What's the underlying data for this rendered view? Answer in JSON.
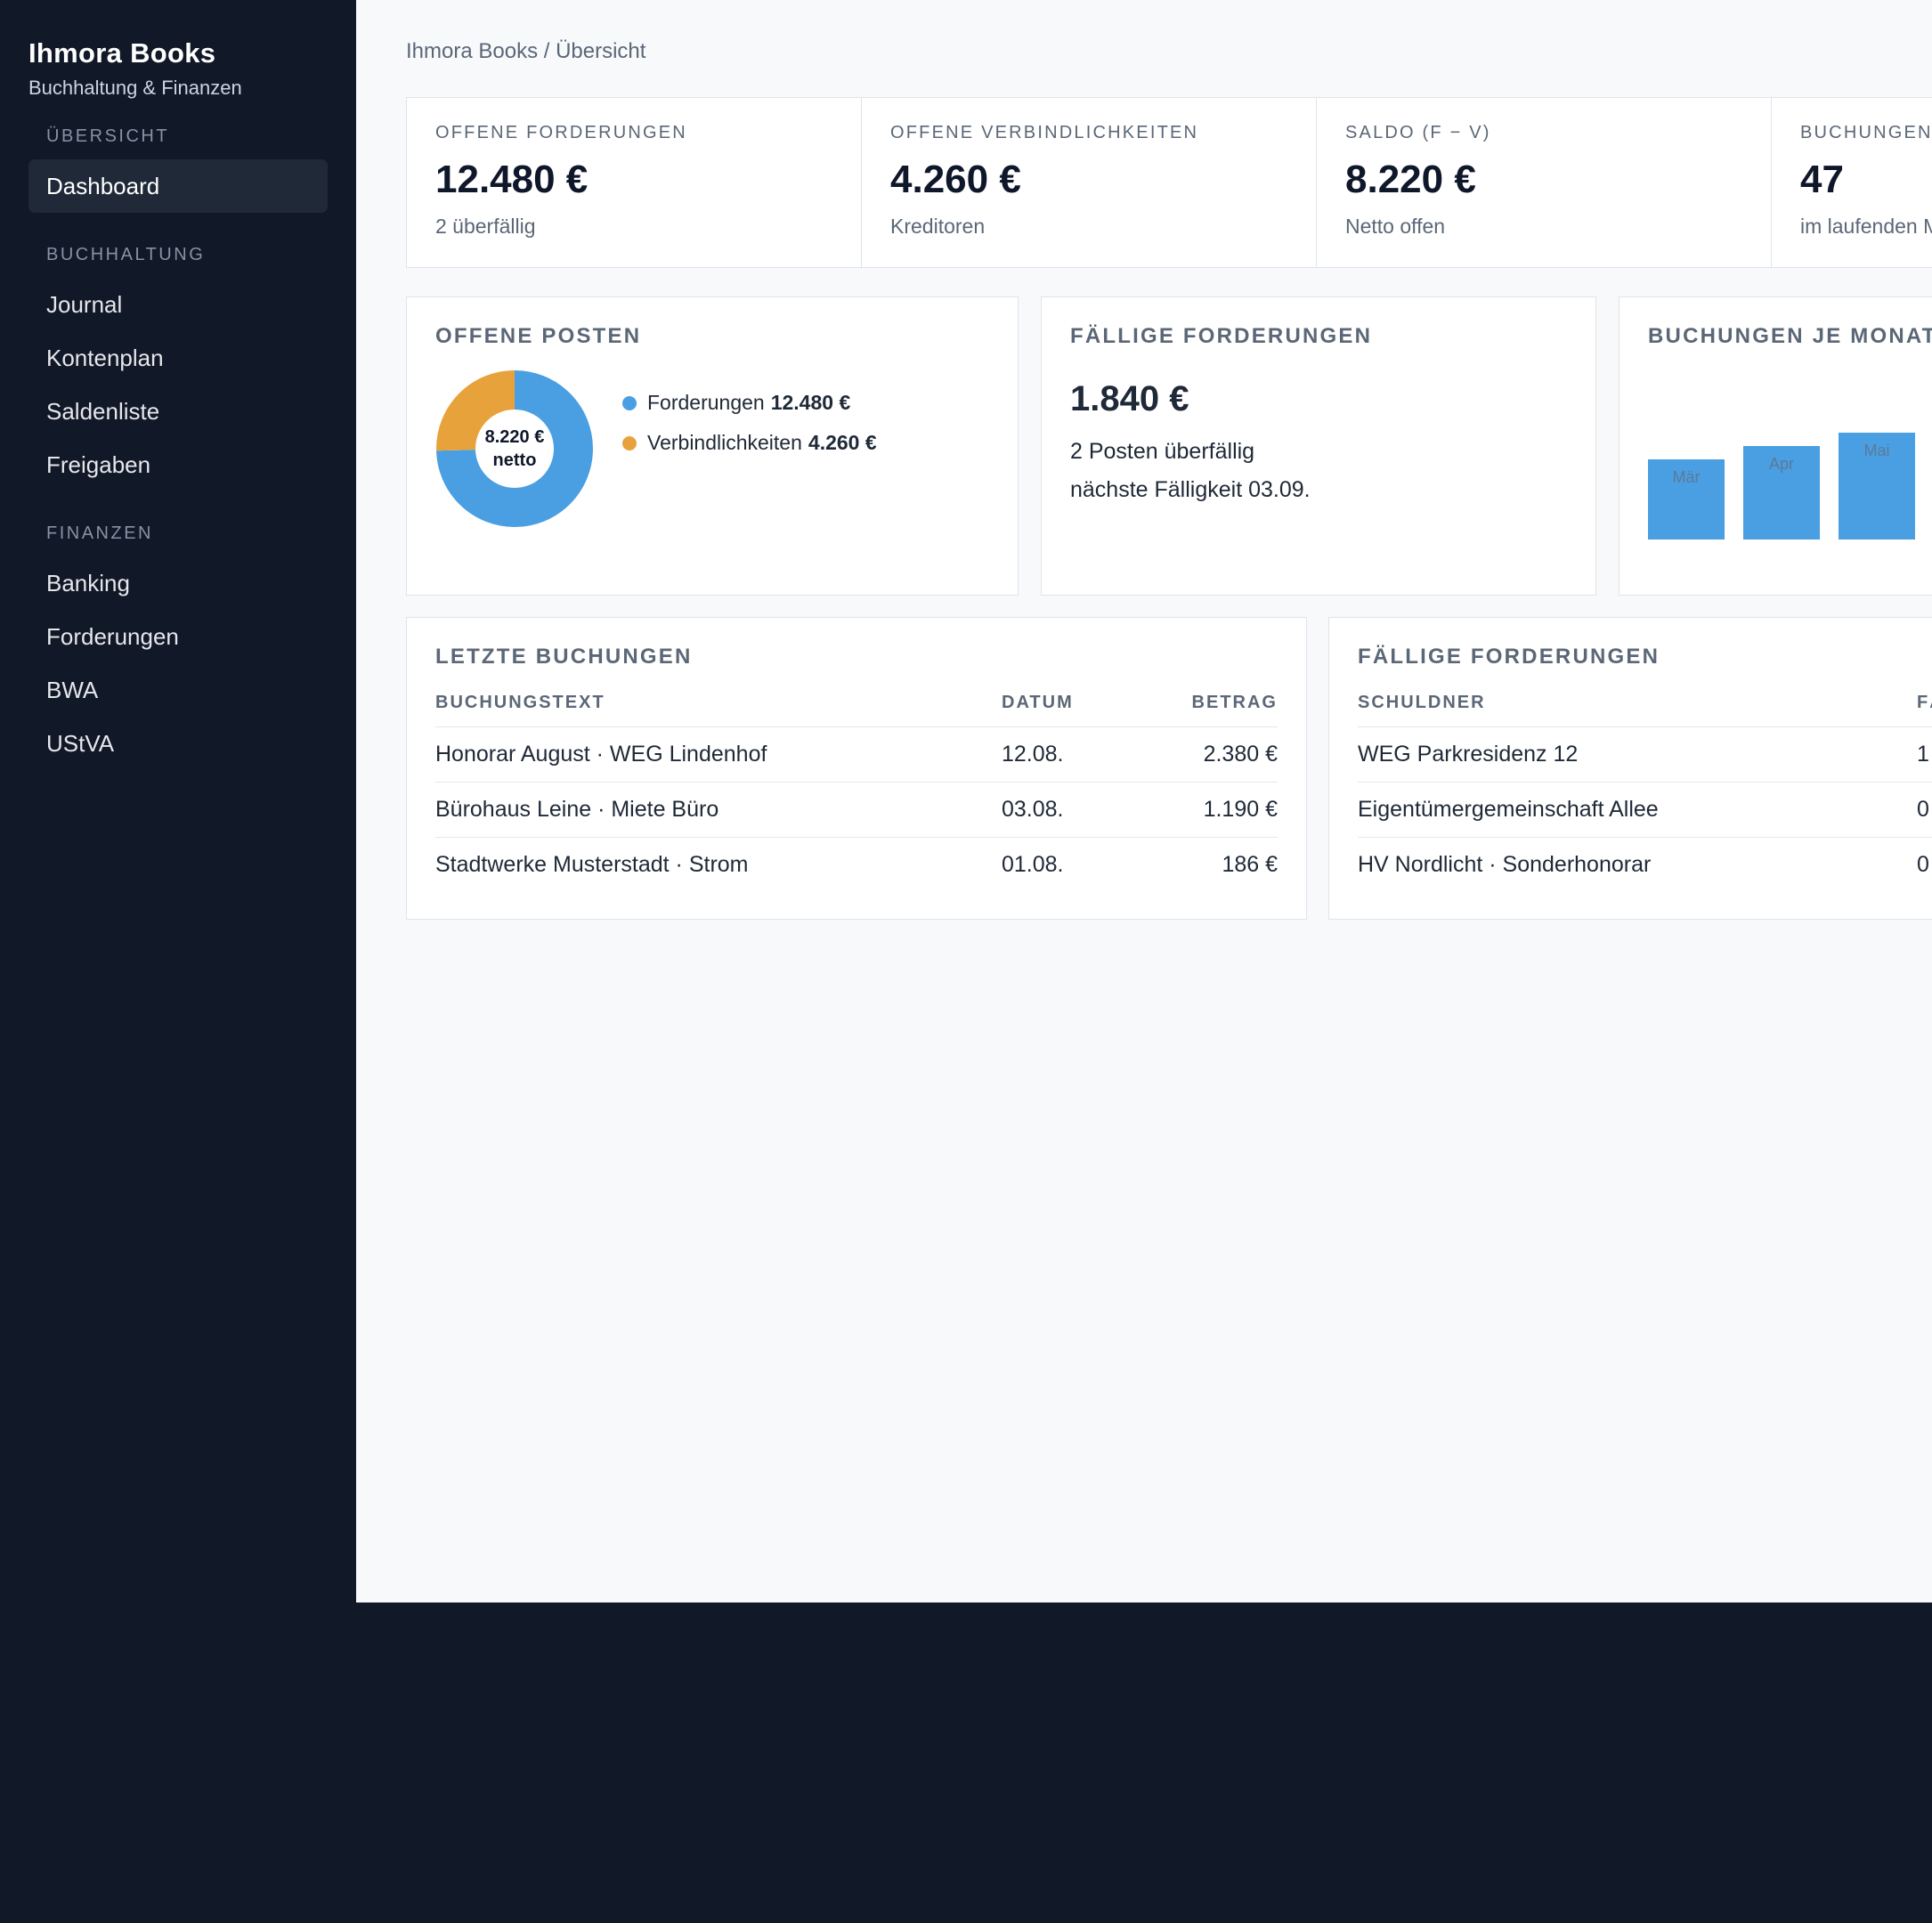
{
  "sidebar": {
    "brand_title": "Ihmora Books",
    "brand_subtitle": "Buchhaltung & Finanzen",
    "sections": [
      {
        "label": "ÜBERSICHT",
        "items": [
          "Dashboard"
        ]
      },
      {
        "label": "BUCHHALTUNG",
        "items": [
          "Journal",
          "Kontenplan",
          "Saldenliste",
          "Freigaben"
        ]
      },
      {
        "label": "FINANZEN",
        "items": [
          "Banking",
          "Forderungen",
          "BWA",
          "UStVA"
        ]
      }
    ],
    "active_item": "Dashboard"
  },
  "breadcrumb": "Ihmora Books / Übersicht",
  "kpis": [
    {
      "label": "OFFENE FORDERUNGEN",
      "value": "12.480 €",
      "sub": "2 überfällig"
    },
    {
      "label": "OFFENE VERBINDLICHKEITEN",
      "value": "4.260 €",
      "sub": "Kreditoren"
    },
    {
      "label": "SALDO (F − V)",
      "value": "8.220 €",
      "sub": "Netto offen"
    },
    {
      "label": "BUCHUNGEN",
      "value": "47",
      "sub": "im laufenden M"
    }
  ],
  "offene_posten": {
    "title": "OFFENE POSTEN",
    "center_value": "8.220 €",
    "center_label": "netto",
    "legend": [
      {
        "label": "Forderungen",
        "value": "12.480 €",
        "color": "#4a9fe2"
      },
      {
        "label": "Verbindlichkeiten",
        "value": "4.260 €",
        "color": "#e8a23c"
      }
    ]
  },
  "faellige_summary": {
    "title": "FÄLLIGE FORDERUNGEN",
    "amount": "1.840 €",
    "line1": "2 Posten überfällig",
    "line2": "nächste Fälligkeit 03.09."
  },
  "buchungen_chart": {
    "title": "BUCHUNGEN JE MONAT"
  },
  "chart_data": [
    {
      "type": "pie",
      "categories": [
        "Forderungen",
        "Verbindlichkeiten"
      ],
      "values": [
        12480,
        4260
      ],
      "colors": [
        "#4a9fe2",
        "#e8a23c"
      ],
      "title": "OFFENE POSTEN"
    },
    {
      "type": "bar",
      "title": "BUCHUNGEN JE MONAT",
      "categories": [
        "Mär",
        "Apr",
        "Mai"
      ],
      "values": [
        36,
        42,
        48
      ],
      "ylim": [
        0,
        60
      ],
      "color": "#4a9fe2"
    }
  ],
  "letzte_buchungen": {
    "title": "LETZTE BUCHUNGEN",
    "columns": [
      "BUCHUNGSTEXT",
      "DATUM",
      "BETRAG"
    ],
    "rows": [
      [
        "Honorar August · WEG Lindenhof",
        "12.08.",
        "2.380 €"
      ],
      [
        "Bürohaus Leine · Miete Büro",
        "03.08.",
        "1.190 €"
      ],
      [
        "Stadtwerke Musterstadt · Strom",
        "01.08.",
        "186 €"
      ]
    ]
  },
  "faellige_tabelle": {
    "title": "FÄLLIGE FORDERUNGEN",
    "columns": [
      "SCHULDNER",
      "FÄ"
    ],
    "rows": [
      [
        "WEG Parkresidenz 12",
        "1"
      ],
      [
        "Eigentümergemeinschaft Allee",
        "0"
      ],
      [
        "HV Nordlicht · Sonderhonorar",
        "0"
      ]
    ]
  }
}
